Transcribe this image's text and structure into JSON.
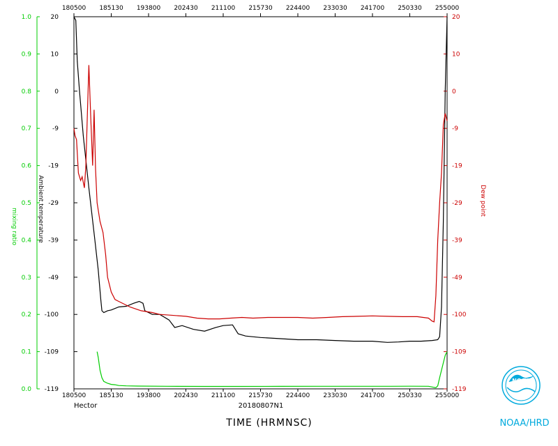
{
  "chart_data": {
    "type": "line",
    "x_ticks": [
      "180500",
      "185130",
      "193800",
      "202430",
      "211100",
      "215730",
      "224400",
      "233030",
      "241700",
      "250330",
      "255000"
    ],
    "x_range": [
      0,
      10
    ],
    "left_axis_mixing": {
      "label": "mixing ratio",
      "ticks": [
        "0.0",
        "0.1",
        "0.2",
        "0.3",
        "0.4",
        "0.5",
        "0.6",
        "0.7",
        "0.8",
        "0.9",
        "1.0"
      ],
      "range": [
        0.0,
        1.0
      ],
      "color": "#00cc00"
    },
    "left_axis_temp": {
      "label": "Ambient temperature",
      "ticks": [
        "-119",
        "-109",
        "-100",
        "-49",
        "-39",
        "-29",
        "-19",
        "-9",
        "0",
        "10",
        "20"
      ],
      "color": "#000000"
    },
    "right_axis_dew": {
      "label": "Dew point",
      "ticks": [
        "-119",
        "-109",
        "-100",
        "-49",
        "-39",
        "-29",
        "-19",
        "-9",
        "0",
        "10",
        "20"
      ],
      "color": "#cc0000"
    },
    "footer": {
      "storm": "Hector",
      "flight": "20180807N1",
      "xlabel": "TIME (HRMNSC)",
      "logo_label": "NOAA",
      "credit": "NOAA/HRD"
    },
    "series": [
      {
        "name": "temperature",
        "color": "#000000",
        "points": [
          [
            0.0,
            10.0
          ],
          [
            0.05,
            9.9
          ],
          [
            0.09,
            8.8
          ],
          [
            0.15,
            8.0
          ],
          [
            0.25,
            6.8
          ],
          [
            0.4,
            5.4
          ],
          [
            0.55,
            4.1
          ],
          [
            0.65,
            3.2
          ],
          [
            0.72,
            2.4
          ],
          [
            0.75,
            2.1
          ],
          [
            0.8,
            2.05
          ],
          [
            0.9,
            2.1
          ],
          [
            1.0,
            2.12
          ],
          [
            1.2,
            2.2
          ],
          [
            1.4,
            2.22
          ],
          [
            1.6,
            2.3
          ],
          [
            1.75,
            2.35
          ],
          [
            1.85,
            2.3
          ],
          [
            1.9,
            2.1
          ],
          [
            2.1,
            2.0
          ],
          [
            2.3,
            2.0
          ],
          [
            2.55,
            1.85
          ],
          [
            2.7,
            1.65
          ],
          [
            2.9,
            1.7
          ],
          [
            3.2,
            1.6
          ],
          [
            3.5,
            1.55
          ],
          [
            3.8,
            1.65
          ],
          [
            4.0,
            1.7
          ],
          [
            4.25,
            1.72
          ],
          [
            4.4,
            1.48
          ],
          [
            4.6,
            1.42
          ],
          [
            5.0,
            1.38
          ],
          [
            5.5,
            1.35
          ],
          [
            6.0,
            1.32
          ],
          [
            6.5,
            1.32
          ],
          [
            7.0,
            1.3
          ],
          [
            7.5,
            1.28
          ],
          [
            8.0,
            1.28
          ],
          [
            8.4,
            1.25
          ],
          [
            8.7,
            1.26
          ],
          [
            9.0,
            1.28
          ],
          [
            9.3,
            1.28
          ],
          [
            9.6,
            1.3
          ],
          [
            9.75,
            1.32
          ],
          [
            9.8,
            1.4
          ],
          [
            9.85,
            2.2
          ],
          [
            9.9,
            4.5
          ],
          [
            9.95,
            8.0
          ],
          [
            10.0,
            10.0
          ]
        ]
      },
      {
        "name": "dew point",
        "color": "#cc0000",
        "points": [
          [
            0.0,
            7.0
          ],
          [
            0.03,
            6.8
          ],
          [
            0.07,
            6.7
          ],
          [
            0.12,
            5.8
          ],
          [
            0.18,
            5.6
          ],
          [
            0.22,
            5.7
          ],
          [
            0.28,
            5.4
          ],
          [
            0.32,
            6.0
          ],
          [
            0.36,
            7.4
          ],
          [
            0.4,
            8.7
          ],
          [
            0.45,
            7.3
          ],
          [
            0.5,
            6.0
          ],
          [
            0.54,
            7.5
          ],
          [
            0.58,
            5.9
          ],
          [
            0.62,
            5.0
          ],
          [
            0.7,
            4.5
          ],
          [
            0.78,
            4.2
          ],
          [
            0.85,
            3.6
          ],
          [
            0.9,
            3.0
          ],
          [
            1.0,
            2.6
          ],
          [
            1.1,
            2.4
          ],
          [
            1.2,
            2.35
          ],
          [
            1.5,
            2.2
          ],
          [
            1.8,
            2.1
          ],
          [
            2.1,
            2.05
          ],
          [
            2.3,
            2.0
          ],
          [
            2.6,
            1.98
          ],
          [
            3.0,
            1.95
          ],
          [
            3.3,
            1.9
          ],
          [
            3.6,
            1.88
          ],
          [
            3.9,
            1.88
          ],
          [
            4.2,
            1.9
          ],
          [
            4.5,
            1.92
          ],
          [
            4.8,
            1.9
          ],
          [
            5.2,
            1.92
          ],
          [
            5.6,
            1.92
          ],
          [
            6.0,
            1.92
          ],
          [
            6.4,
            1.9
          ],
          [
            6.8,
            1.92
          ],
          [
            7.2,
            1.94
          ],
          [
            7.6,
            1.95
          ],
          [
            8.0,
            1.96
          ],
          [
            8.4,
            1.95
          ],
          [
            8.8,
            1.94
          ],
          [
            9.2,
            1.94
          ],
          [
            9.5,
            1.9
          ],
          [
            9.6,
            1.82
          ],
          [
            9.65,
            1.8
          ],
          [
            9.7,
            2.5
          ],
          [
            9.75,
            4.0
          ],
          [
            9.8,
            5.0
          ],
          [
            9.85,
            5.8
          ],
          [
            9.9,
            7.1
          ],
          [
            9.95,
            7.4
          ],
          [
            10.0,
            7.2
          ]
        ]
      },
      {
        "name": "mixing ratio",
        "color": "#00cc00",
        "points": [
          [
            0.62,
            1.0
          ],
          [
            0.65,
            0.85
          ],
          [
            0.7,
            0.5
          ],
          [
            0.75,
            0.3
          ],
          [
            0.8,
            0.2
          ],
          [
            0.9,
            0.15
          ],
          [
            1.0,
            0.12
          ],
          [
            1.1,
            0.11
          ],
          [
            1.2,
            0.09
          ],
          [
            1.4,
            0.08
          ],
          [
            1.7,
            0.075
          ],
          [
            2.5,
            0.07
          ],
          [
            3.5,
            0.065
          ],
          [
            4.5,
            0.065
          ],
          [
            5.5,
            0.068
          ],
          [
            6.5,
            0.07
          ],
          [
            7.5,
            0.07
          ],
          [
            8.5,
            0.07
          ],
          [
            9.0,
            0.072
          ],
          [
            9.5,
            0.07
          ],
          [
            9.6,
            0.05
          ],
          [
            9.65,
            0.04
          ],
          [
            9.7,
            0.03
          ],
          [
            9.75,
            0.08
          ],
          [
            9.8,
            0.3
          ],
          [
            9.9,
            0.7
          ],
          [
            9.95,
            0.9
          ],
          [
            10.0,
            1.0
          ]
        ]
      }
    ]
  }
}
